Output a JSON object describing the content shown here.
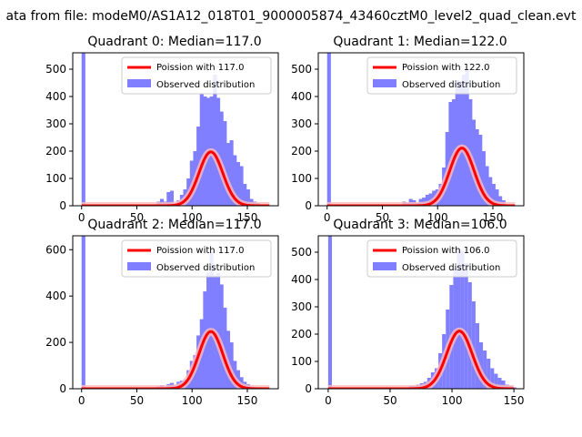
{
  "figure_title": "ata from file: modeM0/AS1A12_018T01_9000005874_43460cztM0_level2_quad_clean.evt",
  "colors": {
    "hist": "#7f7fff",
    "curve": "#ff0000",
    "curve_glow": "#ffbbbb"
  },
  "chart_data": [
    {
      "type": "bar",
      "title": "Quadrant 0: Median=117.0",
      "legend": {
        "placement": "top-right",
        "curve_label": "Poission with 117.0",
        "hist_label": "Observed distribution"
      },
      "xlim": [
        -8,
        178
      ],
      "ylim": [
        0,
        560
      ],
      "xticks": [
        0,
        50,
        100,
        150
      ],
      "yticks": [
        0,
        100,
        200,
        300,
        400,
        500
      ],
      "median": 117,
      "scale": 5350,
      "bin_width": 3.4,
      "bins": [
        [
          0,
          560
        ],
        [
          68,
          15
        ],
        [
          71,
          25
        ],
        [
          74,
          15
        ],
        [
          77,
          50
        ],
        [
          80,
          55
        ],
        [
          83,
          10
        ],
        [
          86,
          20
        ],
        [
          89,
          40
        ],
        [
          92,
          60
        ],
        [
          95,
          100
        ],
        [
          98,
          165
        ],
        [
          101,
          200
        ],
        [
          104,
          290
        ],
        [
          107,
          410
        ],
        [
          110,
          400
        ],
        [
          113,
          395
        ],
        [
          116,
          400
        ],
        [
          119,
          480
        ],
        [
          122,
          395
        ],
        [
          125,
          345
        ],
        [
          128,
          310
        ],
        [
          131,
          230
        ],
        [
          134,
          240
        ],
        [
          137,
          185
        ],
        [
          140,
          160
        ],
        [
          143,
          145
        ],
        [
          146,
          80
        ],
        [
          149,
          60
        ],
        [
          152,
          25
        ],
        [
          155,
          15
        ],
        [
          158,
          10
        ]
      ]
    },
    {
      "type": "bar",
      "title": "Quadrant 1: Median=122.0",
      "legend": {
        "placement": "top-right",
        "curve_label": "Poission with 122.0",
        "hist_label": "Observed distribution"
      },
      "xlim": [
        -8,
        178
      ],
      "ylim": [
        0,
        560
      ],
      "xticks": [
        0,
        50,
        100,
        150
      ],
      "yticks": [
        0,
        100,
        200,
        300,
        400,
        500
      ],
      "median": 122,
      "scale": 5850,
      "bin_width": 3.4,
      "bins": [
        [
          0,
          560
        ],
        [
          68,
          15
        ],
        [
          71,
          10
        ],
        [
          74,
          25
        ],
        [
          77,
          20
        ],
        [
          80,
          10
        ],
        [
          83,
          25
        ],
        [
          86,
          30
        ],
        [
          89,
          40
        ],
        [
          92,
          45
        ],
        [
          95,
          55
        ],
        [
          98,
          60
        ],
        [
          101,
          80
        ],
        [
          104,
          140
        ],
        [
          107,
          270
        ],
        [
          110,
          380
        ],
        [
          113,
          390
        ],
        [
          116,
          460
        ],
        [
          119,
          455
        ],
        [
          122,
          480
        ],
        [
          125,
          500
        ],
        [
          128,
          390
        ],
        [
          131,
          315
        ],
        [
          134,
          280
        ],
        [
          137,
          260
        ],
        [
          140,
          200
        ],
        [
          143,
          145
        ],
        [
          146,
          105
        ],
        [
          149,
          80
        ],
        [
          152,
          60
        ],
        [
          155,
          35
        ],
        [
          158,
          20
        ]
      ]
    },
    {
      "type": "bar",
      "title": "Quadrant 2: Median=117.0",
      "legend": {
        "placement": "top-right",
        "curve_label": "Poission with 117.0",
        "hist_label": "Observed distribution"
      },
      "xlim": [
        -8,
        178
      ],
      "ylim": [
        0,
        660
      ],
      "xticks": [
        0,
        50,
        100,
        150
      ],
      "yticks": [
        0,
        200,
        400,
        600
      ],
      "median": 117,
      "scale": 6700,
      "bin_width": 3.4,
      "bins": [
        [
          0,
          660
        ],
        [
          65,
          5
        ],
        [
          68,
          10
        ],
        [
          71,
          15
        ],
        [
          74,
          10
        ],
        [
          77,
          20
        ],
        [
          80,
          25
        ],
        [
          83,
          15
        ],
        [
          86,
          30
        ],
        [
          89,
          35
        ],
        [
          92,
          40
        ],
        [
          95,
          80
        ],
        [
          98,
          120
        ],
        [
          101,
          145
        ],
        [
          104,
          230
        ],
        [
          107,
          300
        ],
        [
          110,
          420
        ],
        [
          113,
          500
        ],
        [
          116,
          590
        ],
        [
          119,
          490
        ],
        [
          122,
          500
        ],
        [
          125,
          450
        ],
        [
          128,
          350
        ],
        [
          131,
          250
        ],
        [
          134,
          200
        ],
        [
          137,
          120
        ],
        [
          140,
          80
        ],
        [
          143,
          50
        ],
        [
          146,
          30
        ],
        [
          149,
          20
        ],
        [
          152,
          10
        ]
      ]
    },
    {
      "type": "bar",
      "title": "Quadrant 3: Median=106.0",
      "legend": {
        "placement": "top-right",
        "curve_label": "Poission with 106.0",
        "hist_label": "Observed distribution"
      },
      "xlim": [
        -8,
        158
      ],
      "ylim": [
        0,
        560
      ],
      "xticks": [
        0,
        50,
        100,
        150
      ],
      "yticks": [
        0,
        100,
        200,
        300,
        400,
        500
      ],
      "median": 106,
      "scale": 5450,
      "bin_width": 3.0,
      "bins": [
        [
          0,
          560
        ],
        [
          56,
          5
        ],
        [
          62,
          5
        ],
        [
          65,
          10
        ],
        [
          68,
          10
        ],
        [
          71,
          15
        ],
        [
          74,
          20
        ],
        [
          77,
          25
        ],
        [
          80,
          40
        ],
        [
          83,
          60
        ],
        [
          86,
          75
        ],
        [
          89,
          130
        ],
        [
          92,
          200
        ],
        [
          95,
          290
        ],
        [
          98,
          380
        ],
        [
          101,
          440
        ],
        [
          104,
          510
        ],
        [
          107,
          505
        ],
        [
          110,
          460
        ],
        [
          113,
          390
        ],
        [
          116,
          320
        ],
        [
          119,
          240
        ],
        [
          122,
          170
        ],
        [
          125,
          140
        ],
        [
          128,
          110
        ],
        [
          131,
          75
        ],
        [
          134,
          55
        ],
        [
          137,
          40
        ],
        [
          140,
          30
        ],
        [
          143,
          15
        ],
        [
          146,
          10
        ],
        [
          149,
          5
        ]
      ]
    }
  ]
}
